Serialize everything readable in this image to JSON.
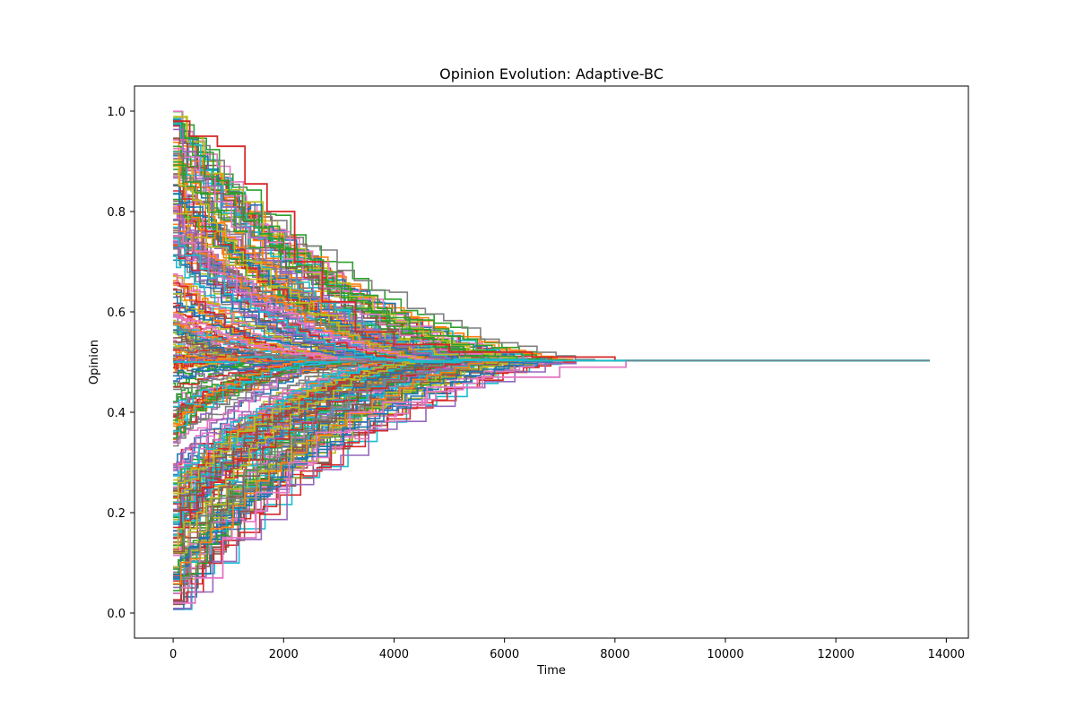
{
  "chart_data": {
    "type": "line",
    "title": "Opinion Evolution: Adaptive-BC",
    "xlabel": "Time",
    "ylabel": "Opinion",
    "xlim": [
      -700,
      14400
    ],
    "ylim": [
      -0.05,
      1.05
    ],
    "xticks": [
      0,
      2000,
      4000,
      6000,
      8000,
      10000,
      12000,
      14000
    ],
    "yticks": [
      0.0,
      0.2,
      0.4,
      0.6,
      0.8,
      1.0
    ],
    "xtick_labels": [
      "0",
      "2000",
      "4000",
      "6000",
      "8000",
      "10000",
      "12000",
      "14000"
    ],
    "ytick_labels": [
      "0.0",
      "0.2",
      "0.4",
      "0.6",
      "0.8",
      "1.0"
    ],
    "grid": false,
    "legend": "none",
    "series_count": 300,
    "series_shape": "step trajectories per agent, initial opinions uniformly spread over [0, 1], converging to a single consensus",
    "consensus_value": 0.503,
    "consensus_reached_time": 8000,
    "end_time": 13700,
    "representative_series": [
      {
        "x": [
          0,
          300,
          800,
          1300,
          1700,
          2200,
          2700,
          3300,
          4000,
          5000,
          6500,
          8000,
          13700
        ],
        "y": [
          0.98,
          0.95,
          0.93,
          0.855,
          0.8,
          0.7,
          0.62,
          0.56,
          0.535,
          0.52,
          0.51,
          0.503,
          0.503
        ]
      },
      {
        "x": [
          0,
          400,
          900,
          1500,
          2100,
          2600,
          3200,
          3800,
          4600,
          5600,
          7000,
          8200,
          13700
        ],
        "y": [
          0.02,
          0.07,
          0.15,
          0.24,
          0.3,
          0.36,
          0.4,
          0.42,
          0.45,
          0.47,
          0.49,
          0.503,
          0.503
        ]
      },
      {
        "x": [
          0,
          600,
          1200,
          1800,
          2400,
          3000,
          3600,
          4300,
          5200,
          6400,
          8000,
          13700
        ],
        "y": [
          0.5,
          0.5,
          0.51,
          0.505,
          0.5,
          0.51,
          0.505,
          0.5,
          0.505,
          0.503,
          0.503,
          0.503
        ]
      }
    ],
    "colors": [
      "#1f77b4",
      "#ff7f0e",
      "#2ca02c",
      "#d62728",
      "#9467bd",
      "#8c564b",
      "#e377c2",
      "#7f7f7f",
      "#bcbd22",
      "#17becf"
    ]
  }
}
